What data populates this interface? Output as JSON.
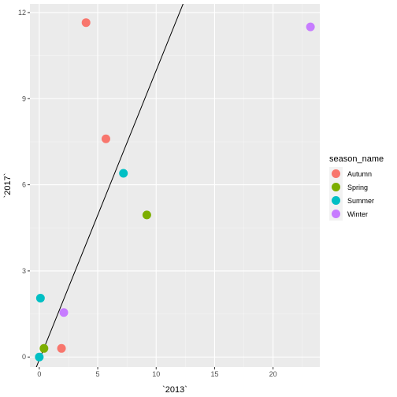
{
  "chart_data": {
    "type": "scatter",
    "xlabel": "`2013`",
    "ylabel": "`2017`",
    "xlim": [
      -0.8,
      24
    ],
    "ylim": [
      -0.35,
      12.3
    ],
    "x_ticks": [
      0,
      5,
      10,
      15,
      20
    ],
    "y_ticks": [
      0,
      3,
      6,
      9,
      12
    ],
    "x_tick_labels": [
      "0",
      "5",
      "10",
      "15",
      "20"
    ],
    "y_tick_labels": [
      "0",
      "3",
      "6",
      "9",
      "12"
    ],
    "grid": true,
    "legend": {
      "title": "season_name",
      "placement": "right",
      "entries": [
        {
          "label": "Autumn",
          "color": "#F8766D"
        },
        {
          "label": "Spring",
          "color": "#7CAE00"
        },
        {
          "label": "Summer",
          "color": "#00BFC4"
        },
        {
          "label": "Winter",
          "color": "#C77CFF"
        }
      ]
    },
    "series": [
      {
        "name": "Autumn",
        "color": "#F8766D",
        "points": [
          [
            4.0,
            11.65
          ],
          [
            5.7,
            7.6
          ],
          [
            1.9,
            0.3
          ]
        ]
      },
      {
        "name": "Spring",
        "color": "#7CAE00",
        "points": [
          [
            9.2,
            4.95
          ],
          [
            0.4,
            0.3
          ]
        ]
      },
      {
        "name": "Summer",
        "color": "#00BFC4",
        "points": [
          [
            7.2,
            6.4
          ],
          [
            0.1,
            2.05
          ],
          [
            0.0,
            0.0
          ]
        ]
      },
      {
        "name": "Winter",
        "color": "#C77CFF",
        "points": [
          [
            23.2,
            11.5
          ],
          [
            2.1,
            1.55
          ]
        ]
      }
    ],
    "reference_line": {
      "x1": -0.5,
      "y1": -0.6,
      "x2": 12.5,
      "y2": 12.5
    }
  }
}
